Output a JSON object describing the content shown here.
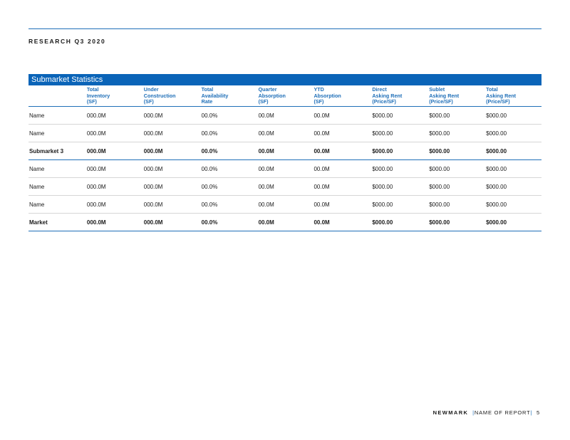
{
  "header": {
    "section_label": "RESEARCH Q3 2020"
  },
  "table": {
    "title": "Submarket Statistics",
    "columns": [
      "",
      "Total\nInventory\n(SF)",
      "Under\nConstruction\n(SF)",
      "Total\nAvailability\nRate",
      "Quarter\nAbsorption\n(SF)",
      "YTD\nAbsorption\n(SF)",
      "Direct\nAsking Rent\n(Price/SF)",
      "Sublet\nAsking Rent\n(Price/SF)",
      "Total\nAsking Rent\n(Price/SF)"
    ],
    "rows": [
      {
        "bold": false,
        "cells": [
          "Name",
          "000.0M",
          "000.0M",
          "00.0%",
          "00.0M",
          "00.0M",
          "$000.00",
          "$000.00",
          "$000.00"
        ]
      },
      {
        "bold": false,
        "cells": [
          "Name",
          "000.0M",
          "000.0M",
          "00.0%",
          "00.0M",
          "00.0M",
          "$000.00",
          "$000.00",
          "$000.00"
        ]
      },
      {
        "bold": true,
        "cells": [
          "Submarket 3",
          "000.0M",
          "000.0M",
          "00.0%",
          "00.0M",
          "00.0M",
          "$000.00",
          "$000.00",
          "$000.00"
        ]
      },
      {
        "bold": false,
        "cells": [
          "Name",
          "000.0M",
          "000.0M",
          "00.0%",
          "00.0M",
          "00.0M",
          "$000.00",
          "$000.00",
          "$000.00"
        ]
      },
      {
        "bold": false,
        "cells": [
          "Name",
          "000.0M",
          "000.0M",
          "00.0%",
          "00.0M",
          "00.0M",
          "$000.00",
          "$000.00",
          "$000.00"
        ]
      },
      {
        "bold": false,
        "cells": [
          "Name",
          "000.0M",
          "000.0M",
          "00.0%",
          "00.0M",
          "00.0M",
          "$000.00",
          "$000.00",
          "$000.00"
        ]
      },
      {
        "bold": true,
        "cells": [
          "Market",
          "000.0M",
          "000.0M",
          "00.0%",
          "00.0M",
          "00.0M",
          "$000.00",
          "$000.00",
          "$000.00"
        ]
      }
    ]
  },
  "footer": {
    "brand": "NEWMARK",
    "report_name": "NAME OF REPORT",
    "page_number": "5"
  },
  "colors": {
    "accent": "#0a64b8",
    "rule": "#1f6fb8"
  }
}
